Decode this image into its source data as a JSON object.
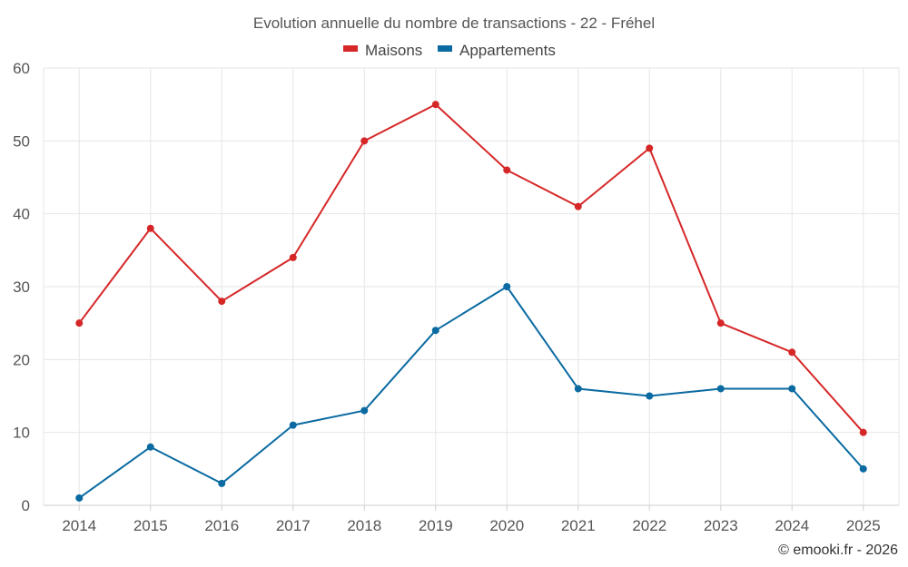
{
  "chart_data": {
    "type": "line",
    "title": "Evolution annuelle du nombre de transactions - 22 - Fréhel",
    "categories": [
      "2014",
      "2015",
      "2016",
      "2017",
      "2018",
      "2019",
      "2020",
      "2021",
      "2022",
      "2023",
      "2024",
      "2025"
    ],
    "series": [
      {
        "name": "Maisons",
        "color": "#d62728",
        "values": [
          25,
          38,
          28,
          34,
          50,
          55,
          46,
          41,
          49,
          25,
          21,
          10
        ]
      },
      {
        "name": "Appartements",
        "color": "#0a6aa1",
        "values": [
          1,
          8,
          3,
          11,
          13,
          24,
          30,
          16,
          15,
          16,
          16,
          5
        ]
      }
    ],
    "ylim": [
      0,
      60
    ],
    "yticks": [
      0,
      10,
      20,
      30,
      40,
      50,
      60
    ],
    "xlabel": "",
    "ylabel": "",
    "grid": true,
    "legend_position": "top-center"
  },
  "credit": "© emooki.fr - 2026"
}
